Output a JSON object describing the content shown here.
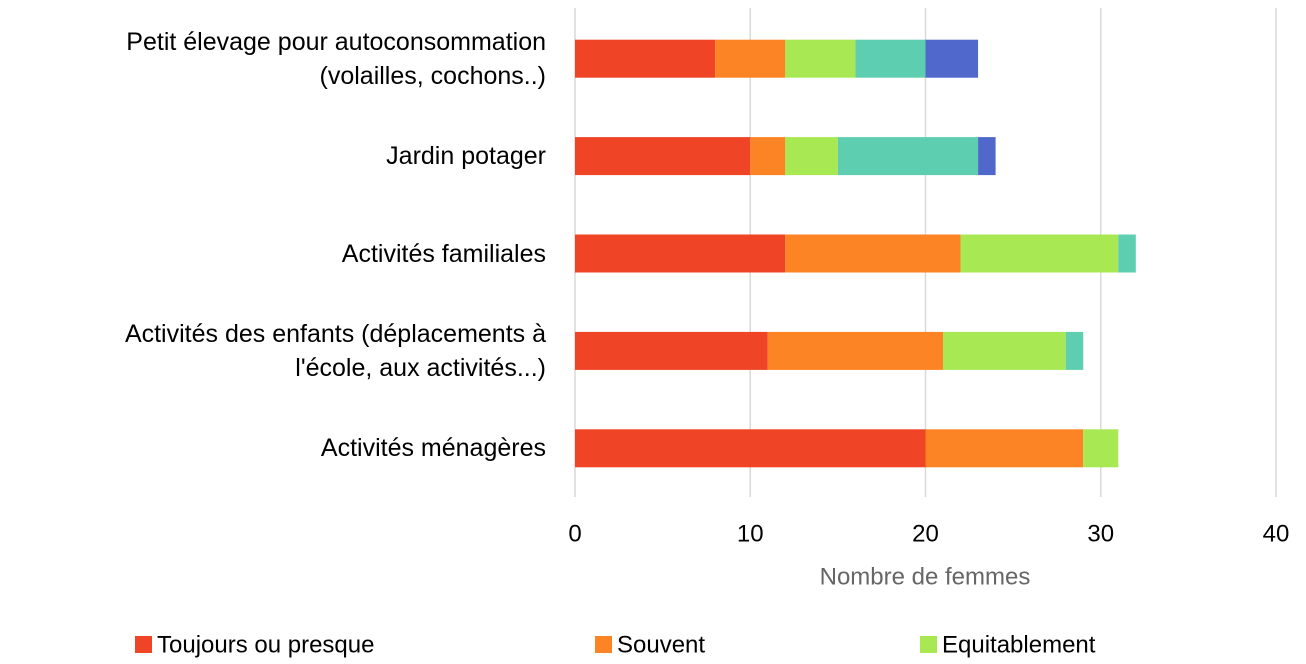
{
  "chart_data": {
    "type": "stacked-bar-horizontal",
    "categories": [
      "Petit élevage pour autoconsommation\n(volailles, cochons..)",
      "Jardin potager",
      "Activités familiales",
      "Activités des enfants (déplacements à\nl'école, aux activités...)",
      "Activités ménagères"
    ],
    "series": [
      {
        "name": "Toujours ou presque",
        "color": "#ef4426",
        "values": [
          8,
          10,
          12,
          11,
          20
        ]
      },
      {
        "name": "Souvent",
        "color": "#fd8424",
        "values": [
          4,
          2,
          10,
          10,
          9
        ]
      },
      {
        "name": "Equitablement",
        "color": "#a8e852",
        "values": [
          4,
          3,
          9,
          7,
          2
        ]
      },
      {
        "color": "#5dcfb0",
        "values": [
          4,
          8,
          1,
          1,
          0
        ]
      },
      {
        "color": "#5067cc",
        "values": [
          3,
          1,
          0,
          0,
          0
        ]
      }
    ],
    "x_label": "Nombre de femmes",
    "xlim": [
      0,
      40
    ],
    "xticks": [
      0,
      10,
      20,
      30,
      40
    ],
    "grid": true
  }
}
